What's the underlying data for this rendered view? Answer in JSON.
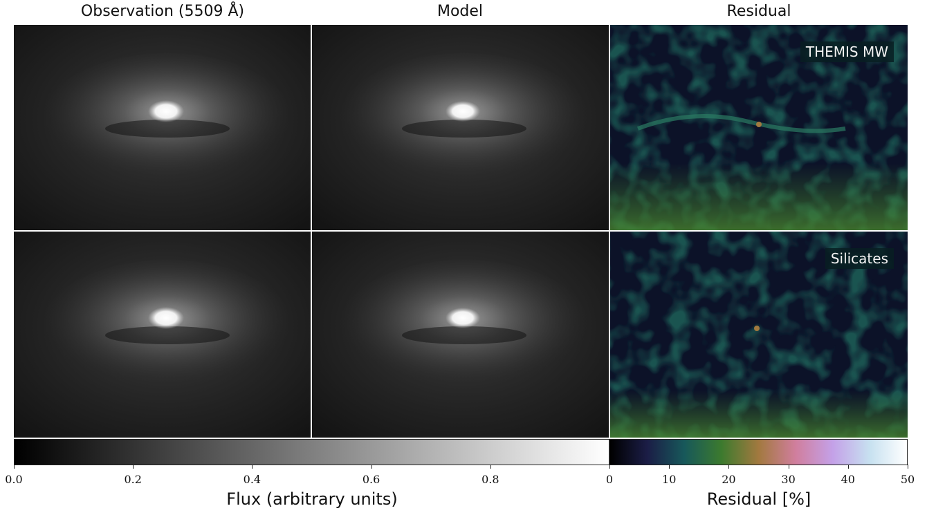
{
  "chart_data": {
    "type": "heatmap",
    "layout": "2 rows x 3 columns image grid",
    "columns": [
      "Observation (5509 Å)",
      "Model",
      "Residual"
    ],
    "rows": [
      {
        "label": "THEMIS MW",
        "panels": [
          "observation",
          "model",
          "residual"
        ]
      },
      {
        "label": "Silicates",
        "panels": [
          "observation",
          "model",
          "residual"
        ]
      }
    ],
    "flux_colorbar": {
      "label": "Flux (arbitrary units)",
      "range": [
        0.0,
        1.0
      ],
      "ticks": [
        0.0,
        0.2,
        0.4,
        0.6,
        0.8
      ],
      "tick_labels": [
        "0.0",
        "0.2",
        "0.4",
        "0.6",
        "0.8"
      ],
      "colormap": "gray"
    },
    "residual_colorbar": {
      "label": "Residual [%]",
      "range": [
        0,
        50
      ],
      "ticks": [
        0,
        10,
        20,
        30,
        40,
        50
      ],
      "tick_labels": [
        "0",
        "10",
        "20",
        "30",
        "40",
        "50"
      ],
      "colormap": "cubehelix",
      "colors": [
        "#000000",
        "#1b1d46",
        "#17585a",
        "#3c7a2e",
        "#a2793f",
        "#d07e9d",
        "#c4a1e8",
        "#c7e1f0",
        "#ffffff"
      ]
    }
  }
}
